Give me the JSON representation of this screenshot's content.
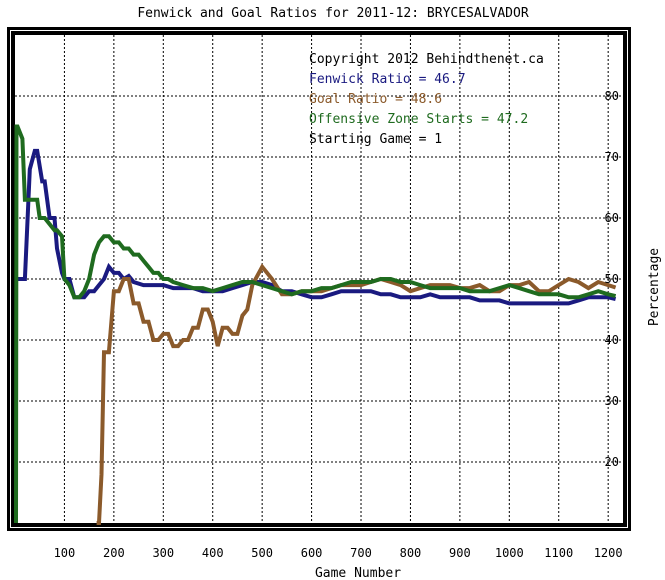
{
  "chart_data": {
    "type": "line",
    "title": "Fenwick and Goal Ratios for 2011-12: BRYCESALVADOR",
    "xlabel": "Game Number",
    "ylabel": "Percentage",
    "xlim": [
      0,
      1230
    ],
    "ylim": [
      10,
      90
    ],
    "x_ticks": [
      100,
      200,
      300,
      400,
      500,
      600,
      700,
      800,
      900,
      1000,
      1100,
      1200
    ],
    "y_ticks": [
      20,
      30,
      40,
      50,
      60,
      70,
      80
    ],
    "grid": true,
    "legend_position": "top-right",
    "annotations": [
      {
        "text": "Copyright 2012 Behindthenet.ca",
        "color": "#000000"
      },
      {
        "text": "Fenwick Ratio = 46.7",
        "color": "#1a1a80"
      },
      {
        "text": "Goal Ratio = 48.6",
        "color": "#8b5a2b"
      },
      {
        "text": "Offensive Zone Starts = 47.2",
        "color": "#1f6b1f"
      },
      {
        "text": "Starting Game = 1",
        "color": "#000000"
      }
    ],
    "series": [
      {
        "color": "#1a1a80",
        "x": [
          3,
          5,
          15,
          20,
          30,
          40,
          45,
          55,
          60,
          70,
          80,
          85,
          95,
          100,
          110,
          120,
          130,
          140,
          150,
          160,
          170,
          180,
          190,
          200,
          210,
          220,
          230,
          240,
          260,
          280,
          300,
          320,
          340,
          360,
          380,
          400,
          420,
          440,
          460,
          480,
          500,
          520,
          540,
          560,
          580,
          600,
          620,
          640,
          660,
          680,
          700,
          720,
          740,
          760,
          780,
          800,
          820,
          840,
          860,
          880,
          900,
          920,
          940,
          960,
          980,
          1000,
          1020,
          1040,
          1060,
          1080,
          1100,
          1120,
          1140,
          1160,
          1180,
          1200,
          1215
        ],
        "y": [
          50,
          50,
          50,
          50,
          68,
          71,
          71,
          66,
          66,
          60,
          60,
          55,
          51,
          50,
          50,
          47,
          47,
          47,
          48,
          48,
          49,
          50,
          52,
          51,
          51,
          50,
          50.5,
          49.5,
          49,
          49,
          49,
          48.5,
          48.5,
          48.5,
          48,
          48,
          48,
          48.5,
          49,
          49.5,
          49.5,
          49,
          48,
          48,
          47.5,
          47,
          47,
          47.5,
          48,
          48,
          48,
          48,
          47.5,
          47.5,
          47,
          47,
          47,
          47.5,
          47,
          47,
          47,
          47,
          46.5,
          46.5,
          46.5,
          46,
          46,
          46,
          46,
          46,
          46,
          46,
          46.5,
          47,
          47,
          47,
          46.7
        ]
      },
      {
        "color": "#8b5a2b",
        "x": [
          165,
          170,
          175,
          180,
          190,
          200,
          210,
          220,
          230,
          240,
          250,
          260,
          270,
          280,
          290,
          300,
          310,
          320,
          330,
          340,
          350,
          360,
          370,
          380,
          390,
          400,
          410,
          420,
          430,
          440,
          450,
          460,
          470,
          480,
          500,
          520,
          540,
          560,
          580,
          600,
          620,
          640,
          660,
          680,
          700,
          720,
          740,
          760,
          780,
          800,
          820,
          840,
          860,
          880,
          900,
          920,
          940,
          960,
          980,
          1000,
          1020,
          1040,
          1060,
          1080,
          1100,
          1120,
          1140,
          1160,
          1180,
          1200,
          1215
        ],
        "y": [
          5,
          10,
          18,
          38,
          38,
          48,
          48,
          50,
          50,
          46,
          46,
          43,
          43,
          40,
          40,
          41,
          41,
          39,
          39,
          40,
          40,
          42,
          42,
          45,
          45,
          43,
          39,
          42,
          42,
          41,
          41,
          44,
          45,
          49,
          52,
          50,
          47.5,
          47.5,
          48,
          48,
          48,
          48.5,
          49,
          49,
          49,
          49.5,
          50,
          49.5,
          49,
          48,
          48.5,
          49,
          49,
          49,
          48.5,
          48.5,
          49,
          48,
          48,
          49,
          49,
          49.5,
          48,
          48,
          49,
          50,
          49.5,
          48.5,
          49.5,
          49,
          48.6
        ]
      },
      {
        "color": "#1f6b1f",
        "x": [
          2,
          3,
          5,
          15,
          20,
          30,
          40,
          45,
          50,
          55,
          60,
          70,
          80,
          85,
          95,
          100,
          110,
          120,
          130,
          140,
          150,
          160,
          170,
          180,
          190,
          200,
          210,
          220,
          230,
          240,
          250,
          260,
          270,
          280,
          290,
          300,
          310,
          320,
          340,
          360,
          380,
          400,
          420,
          440,
          460,
          480,
          500,
          520,
          540,
          560,
          580,
          600,
          620,
          640,
          660,
          680,
          700,
          720,
          740,
          760,
          780,
          800,
          820,
          840,
          860,
          880,
          900,
          920,
          940,
          960,
          980,
          1000,
          1020,
          1040,
          1060,
          1080,
          1100,
          1120,
          1140,
          1160,
          1180,
          1200,
          1215
        ],
        "y": [
          0,
          75,
          75,
          73,
          63,
          63,
          63,
          63,
          60,
          60,
          60,
          59,
          58,
          58,
          57,
          50,
          49,
          47,
          47,
          48,
          50,
          54,
          56,
          57,
          57,
          56,
          56,
          55,
          55,
          54,
          54,
          53,
          52,
          51,
          51,
          50,
          50,
          49.5,
          49,
          48.5,
          48.5,
          48,
          48.5,
          49,
          49.5,
          49.5,
          49,
          48.5,
          48,
          47.5,
          48,
          48,
          48.5,
          48.5,
          49,
          49.5,
          49.5,
          49.5,
          50,
          50,
          49.5,
          49.5,
          49,
          48.5,
          48.5,
          48.5,
          48.5,
          48,
          48,
          48,
          48.5,
          49,
          48.5,
          48,
          47.5,
          47.5,
          47.5,
          47,
          47,
          47.5,
          48,
          47.5,
          47.2
        ]
      }
    ]
  }
}
